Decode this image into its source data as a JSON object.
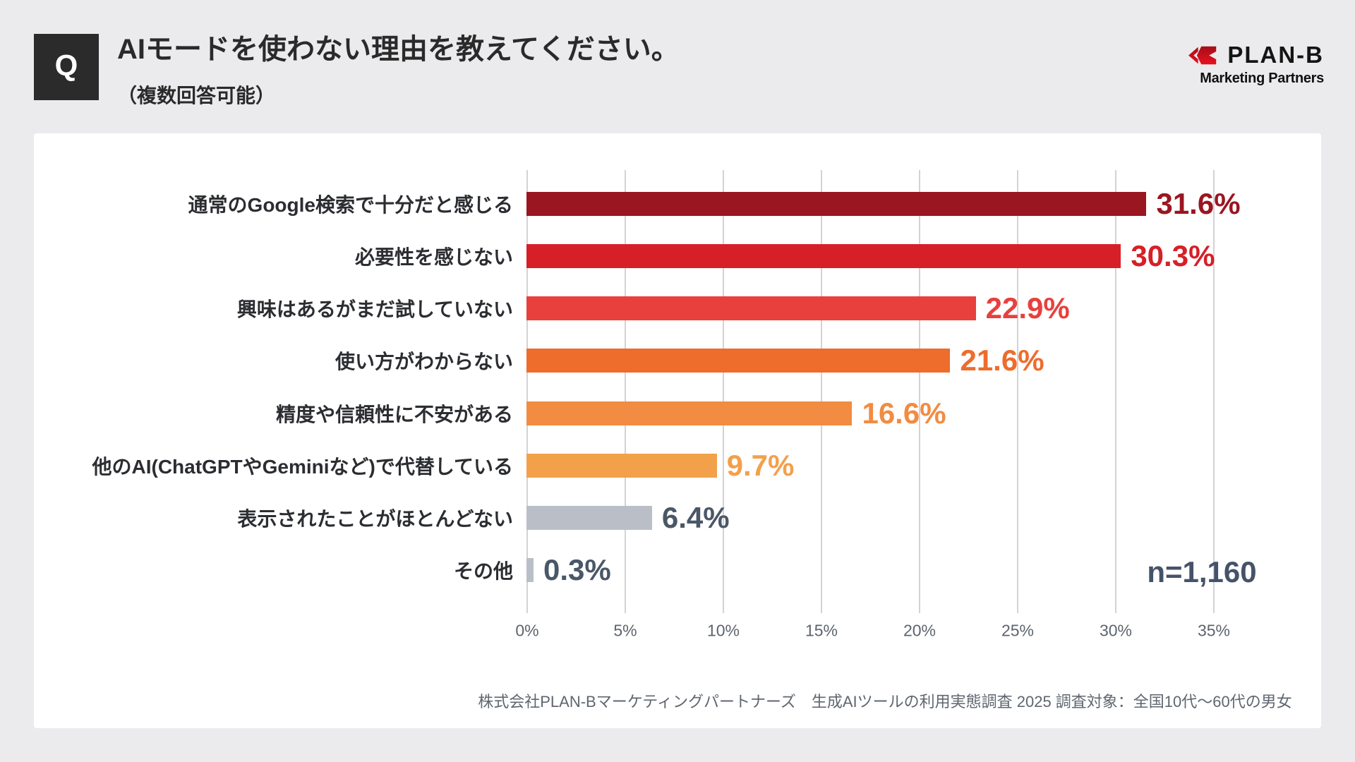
{
  "header": {
    "q_label": "Q",
    "title": "AIモードを使わない理由を教えてください。",
    "subtitle": "（複数回答可能）"
  },
  "logo": {
    "name": "PLAN-B",
    "tagline": "Marketing Partners",
    "brand_red": "#d8101e"
  },
  "chart_data": {
    "type": "bar",
    "orientation": "horizontal",
    "title": "AIモードを使わない理由を教えてください。（複数回答可能）",
    "categories": [
      "通常のGoogle検索で十分だと感じる",
      "必要性を感じない",
      "興味はあるがまだ試していない",
      "使い方がわからない",
      "精度や信頼性に不安がある",
      "他のAI(ChatGPTやGeminiなど)で代替している",
      "表示されたことがほとんどない",
      "その他"
    ],
    "values": [
      31.6,
      30.3,
      22.9,
      21.6,
      16.6,
      9.7,
      6.4,
      0.3
    ],
    "value_labels": [
      "31.6%",
      "30.3%",
      "22.9%",
      "21.6%",
      "16.6%",
      "9.7%",
      "6.4%",
      "0.3%"
    ],
    "bar_colors": [
      "#9a1621",
      "#d71f27",
      "#e8403d",
      "#ee6c2c",
      "#f18c42",
      "#f3a04b",
      "#babfc7",
      "#babfc7"
    ],
    "value_label_colors": [
      "#9a1621",
      "#d71f27",
      "#e8403d",
      "#ee6c2c",
      "#f18c42",
      "#f3a04b",
      "#4a5767",
      "#4a5767"
    ],
    "xlim": [
      0,
      35
    ],
    "x_ticks": [
      "0%",
      "5%",
      "10%",
      "15%",
      "20%",
      "25%",
      "30%",
      "35%"
    ],
    "grid": true,
    "legend": false,
    "sample_size": "n=1,160"
  },
  "footer": {
    "source": "株式会社PLAN-Bマーケティングパートナーズ　生成AIツールの利用実態調査 2025 調査対象：全国10代～60代の男女"
  }
}
